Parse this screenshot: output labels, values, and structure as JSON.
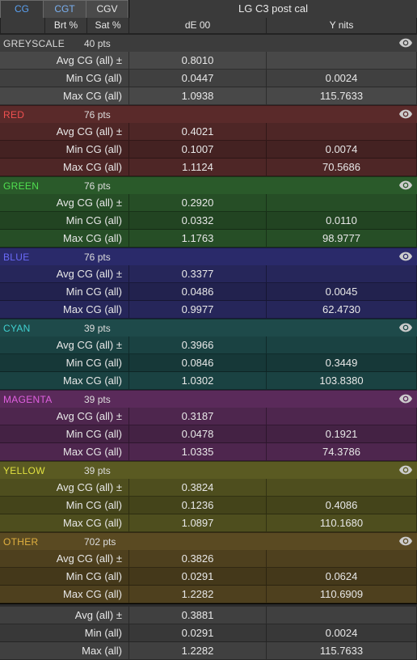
{
  "tabs": {
    "cg": "CG",
    "cgt": "CGT",
    "cgv": "CGV"
  },
  "title": "LG C3 post cal",
  "col_headers": {
    "blank": "",
    "brt": "Brt %",
    "sat": "Sat %",
    "de": "dE 00",
    "y": "Y nits"
  },
  "row_labels": {
    "avg_cg": "Avg CG (all) ±",
    "min_cg": "Min CG (all)",
    "max_cg": "Max CG (all)",
    "avg": "Avg (all) ±",
    "min": "Min (all)",
    "max": "Max (all)"
  },
  "pts_suffix": "pts",
  "colors": {
    "greyscale": {
      "head": "#3c3c3c",
      "r0": "#484848",
      "r1": "#404040",
      "r2": "#484848",
      "name": "#d8d8d8"
    },
    "red": {
      "head": "#5a2a2a",
      "r0": "#4e2626",
      "r1": "#442222",
      "r2": "#4e2626",
      "name": "#f05050"
    },
    "green": {
      "head": "#2a5a2a",
      "r0": "#264e26",
      "r1": "#224422",
      "r2": "#264e26",
      "name": "#50e050"
    },
    "blue": {
      "head": "#2a2a6a",
      "r0": "#26265a",
      "r1": "#22224e",
      "r2": "#26265a",
      "name": "#6a6af8"
    },
    "cyan": {
      "head": "#1e4a4a",
      "r0": "#1a4242",
      "r1": "#163838",
      "r2": "#1a4242",
      "name": "#40d0d0"
    },
    "magenta": {
      "head": "#5a2a5a",
      "r0": "#4e264e",
      "r1": "#442244",
      "r2": "#4e264e",
      "name": "#e060e0"
    },
    "yellow": {
      "head": "#5a5a22",
      "r0": "#4e4e1e",
      "r1": "#44441a",
      "r2": "#4e4e1e",
      "name": "#e0e040"
    },
    "other": {
      "head": "#5a4a22",
      "r0": "#4e401e",
      "r1": "#44381a",
      "r2": "#4e401e",
      "name": "#e0b040"
    },
    "summary": {
      "r0": "#404040",
      "r1": "#383838",
      "r2": "#404040"
    }
  },
  "sections": {
    "greyscale": {
      "label": "GREYSCALE",
      "pts": "40",
      "avg_de": "0.8010",
      "avg_y": "",
      "min_de": "0.0447",
      "min_y": "0.0024",
      "max_de": "1.0938",
      "max_y": "115.7633"
    },
    "red": {
      "label": "RED",
      "pts": "76",
      "avg_de": "0.4021",
      "avg_y": "",
      "min_de": "0.1007",
      "min_y": "0.0074",
      "max_de": "1.1124",
      "max_y": "70.5686"
    },
    "green": {
      "label": "GREEN",
      "pts": "76",
      "avg_de": "0.2920",
      "avg_y": "",
      "min_de": "0.0332",
      "min_y": "0.0110",
      "max_de": "1.1763",
      "max_y": "98.9777"
    },
    "blue": {
      "label": "BLUE",
      "pts": "76",
      "avg_de": "0.3377",
      "avg_y": "",
      "min_de": "0.0486",
      "min_y": "0.0045",
      "max_de": "0.9977",
      "max_y": "62.4730"
    },
    "cyan": {
      "label": "CYAN",
      "pts": "39",
      "avg_de": "0.3966",
      "avg_y": "",
      "min_de": "0.0846",
      "min_y": "0.3449",
      "max_de": "1.0302",
      "max_y": "103.8380"
    },
    "magenta": {
      "label": "MAGENTA",
      "pts": "39",
      "avg_de": "0.3187",
      "avg_y": "",
      "min_de": "0.0478",
      "min_y": "0.1921",
      "max_de": "1.0335",
      "max_y": "74.3786"
    },
    "yellow": {
      "label": "YELLOW",
      "pts": "39",
      "avg_de": "0.3824",
      "avg_y": "",
      "min_de": "0.1236",
      "min_y": "0.4086",
      "max_de": "1.0897",
      "max_y": "110.1680"
    },
    "other": {
      "label": "OTHER",
      "pts": "702",
      "avg_de": "0.3826",
      "avg_y": "",
      "min_de": "0.0291",
      "min_y": "0.0624",
      "max_de": "1.2282",
      "max_y": "110.6909"
    }
  },
  "summary": {
    "avg_de": "0.3881",
    "avg_y": "",
    "min_de": "0.0291",
    "min_y": "0.0024",
    "max_de": "1.2282",
    "max_y": "115.7633"
  }
}
